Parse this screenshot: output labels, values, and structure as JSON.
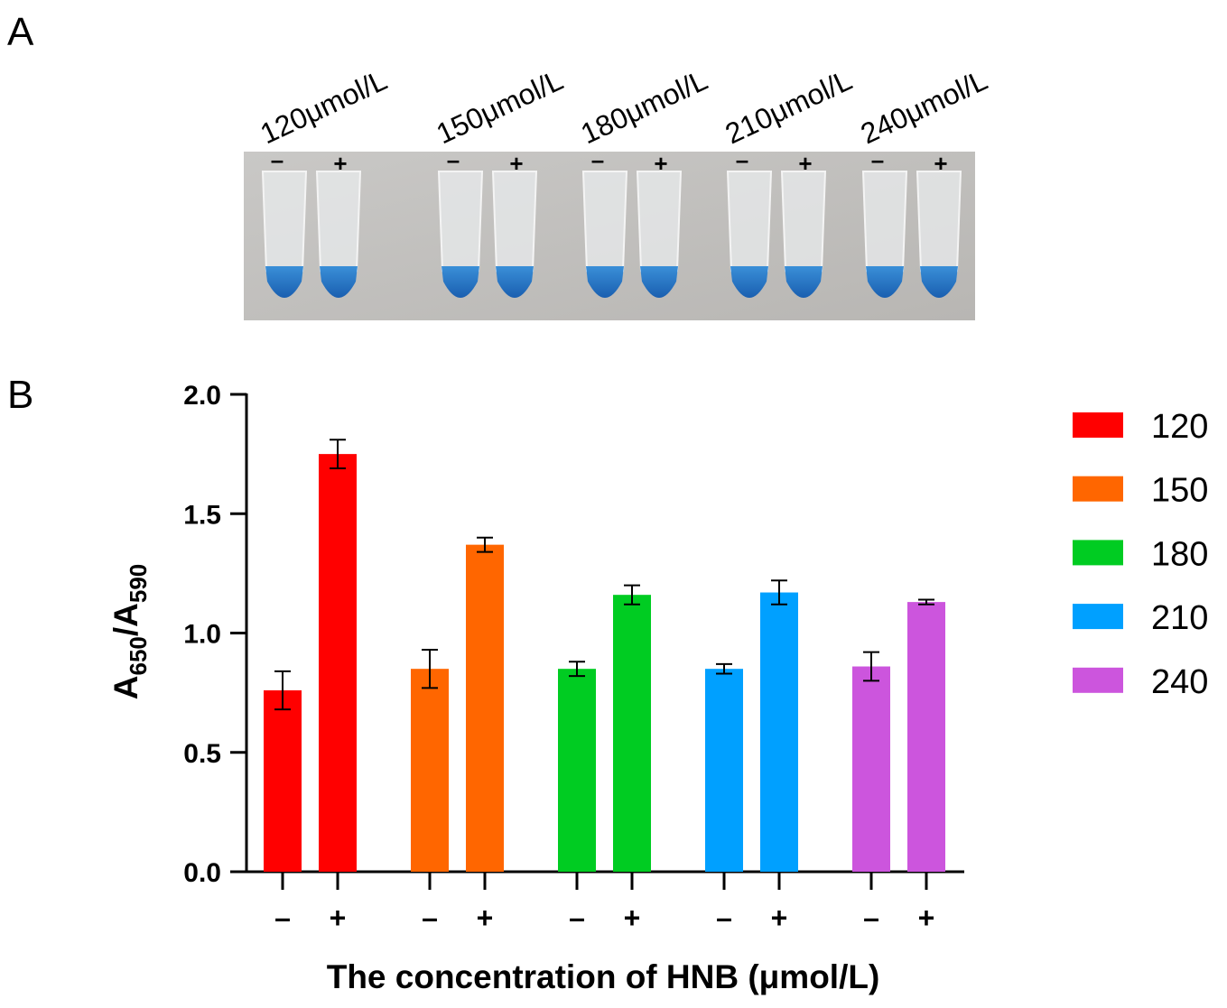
{
  "panel_labels": [
    "A",
    "B"
  ],
  "panel_a": {
    "labels": [
      "120μmol/L",
      "150μmol/L",
      "180μmol/L",
      "210μmol/L",
      "240μmol/L"
    ],
    "signs": [
      "–",
      "+"
    ]
  },
  "chart_data": {
    "type": "bar",
    "y_label": {
      "main1": "A",
      "sub1": "650",
      "main2": "/A",
      "sub2": "590"
    },
    "x_label": "The concentration of HNB (μmol/L)",
    "categories": [
      "–",
      "+"
    ],
    "series": [
      {
        "name": "120",
        "color": "#ff0000",
        "values": [
          0.76,
          1.75
        ],
        "errors": [
          0.08,
          0.06
        ]
      },
      {
        "name": "150",
        "color": "#ff6600",
        "values": [
          0.85,
          1.37
        ],
        "errors": [
          0.08,
          0.03
        ]
      },
      {
        "name": "180",
        "color": "#00cc22",
        "values": [
          0.85,
          1.16
        ],
        "errors": [
          0.03,
          0.04
        ]
      },
      {
        "name": "210",
        "color": "#00a0ff",
        "values": [
          0.85,
          1.17
        ],
        "errors": [
          0.02,
          0.05
        ]
      },
      {
        "name": "240",
        "color": "#cc55dd",
        "values": [
          0.86,
          1.13
        ],
        "errors": [
          0.06,
          0.01
        ]
      }
    ],
    "ylim": [
      0,
      2.0
    ],
    "yticks": [
      {
        "value": 0,
        "label": "0.0"
      },
      {
        "value": 0.5,
        "label": "0.5"
      },
      {
        "value": 1.0,
        "label": "1.0"
      },
      {
        "value": 1.5,
        "label": "1.5"
      },
      {
        "value": 2.0,
        "label": "2.0"
      }
    ],
    "legend": "right"
  }
}
